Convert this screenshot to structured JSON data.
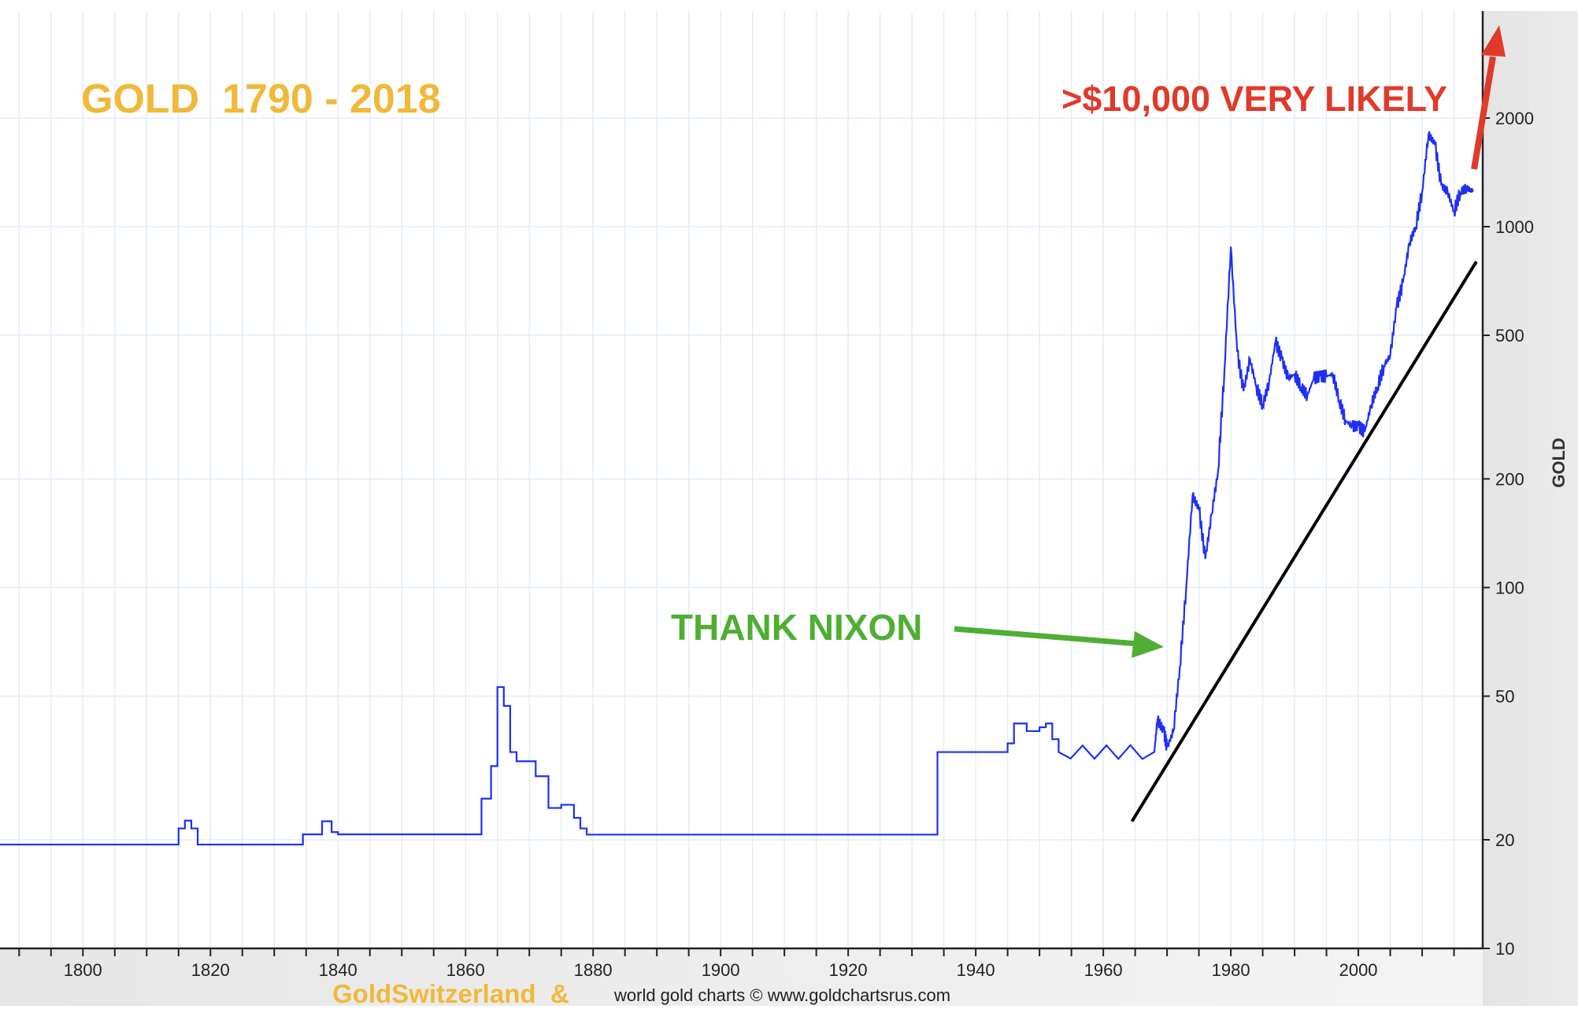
{
  "chart_data": {
    "type": "line",
    "title": "GOLD  1790 - 2018",
    "ylabel": "GOLD",
    "xlabel": "",
    "y_scale": "log",
    "ylim": [
      10,
      3000
    ],
    "xlim": [
      1787,
      2019.5
    ],
    "grid": true,
    "x_ticks": [
      1800,
      1820,
      1840,
      1860,
      1880,
      1900,
      1920,
      1940,
      1960,
      1980,
      2000
    ],
    "y_ticks": [
      10,
      20,
      50,
      100,
      200,
      500,
      1000,
      2000
    ],
    "y_tick_labels": [
      "10",
      "20",
      "50",
      "100",
      "200",
      "500",
      "1000",
      "2000"
    ],
    "series": [
      {
        "color": "#1f2ff5",
        "points": [
          [
            1787,
            19.4
          ],
          [
            1814.5,
            19.4
          ],
          [
            1815,
            21.5
          ],
          [
            1816,
            22.6
          ],
          [
            1817,
            21.5
          ],
          [
            1818,
            19.4
          ],
          [
            1834,
            19.4
          ],
          [
            1834.5,
            20.7
          ],
          [
            1837,
            20.7
          ],
          [
            1837.5,
            22.5
          ],
          [
            1839,
            21
          ],
          [
            1840,
            20.7
          ],
          [
            1862,
            20.7
          ],
          [
            1862.5,
            26
          ],
          [
            1864,
            32
          ],
          [
            1865,
            53
          ],
          [
            1866,
            47
          ],
          [
            1867,
            35
          ],
          [
            1868,
            33
          ],
          [
            1870,
            33
          ],
          [
            1871,
            30
          ],
          [
            1873,
            24.5
          ],
          [
            1875,
            25
          ],
          [
            1877,
            23
          ],
          [
            1878,
            21.5
          ],
          [
            1879,
            20.67
          ],
          [
            1933.5,
            20.67
          ],
          [
            1934,
            35
          ],
          [
            1940,
            35
          ],
          [
            1945,
            37
          ],
          [
            1946,
            42
          ],
          [
            1948,
            40
          ],
          [
            1950,
            41
          ],
          [
            1951,
            42
          ],
          [
            1952,
            38
          ],
          [
            1953,
            35
          ],
          [
            1968,
            35
          ],
          [
            1968.5,
            43
          ],
          [
            1969.5,
            40
          ],
          [
            1970,
            36
          ],
          [
            1971,
            40
          ],
          [
            1972,
            60
          ],
          [
            1973,
            100
          ],
          [
            1974,
            180
          ],
          [
            1975,
            165
          ],
          [
            1976,
            120
          ],
          [
            1977,
            160
          ],
          [
            1978,
            210
          ],
          [
            1979,
            400
          ],
          [
            1980,
            880
          ],
          [
            1981,
            450
          ],
          [
            1982,
            350
          ],
          [
            1983,
            430
          ],
          [
            1984,
            360
          ],
          [
            1985,
            320
          ],
          [
            1986,
            370
          ],
          [
            1987,
            480
          ],
          [
            1988,
            430
          ],
          [
            1989,
            380
          ],
          [
            1990,
            390
          ],
          [
            1991,
            360
          ],
          [
            1992,
            340
          ],
          [
            1993,
            380
          ],
          [
            1994,
            385
          ],
          [
            1995,
            385
          ],
          [
            1996,
            390
          ],
          [
            1997,
            330
          ],
          [
            1998,
            290
          ],
          [
            1999,
            280
          ],
          [
            2000,
            280
          ],
          [
            2001,
            270
          ],
          [
            2002,
            320
          ],
          [
            2003,
            360
          ],
          [
            2004,
            410
          ],
          [
            2005,
            440
          ],
          [
            2006,
            600
          ],
          [
            2007,
            700
          ],
          [
            2008,
            900
          ],
          [
            2009,
            1000
          ],
          [
            2010,
            1250
          ],
          [
            2011,
            1800
          ],
          [
            2012,
            1700
          ],
          [
            2013,
            1300
          ],
          [
            2014,
            1250
          ],
          [
            2015,
            1100
          ],
          [
            2016,
            1250
          ],
          [
            2017,
            1280
          ],
          [
            2018,
            1250
          ]
        ]
      }
    ],
    "trendline": {
      "color": "#000000",
      "from": [
        1964.5,
        22.5
      ],
      "to": [
        2018.5,
        800
      ]
    },
    "annotations": [
      {
        "text": ">$10,000 VERY LIKELY",
        "color": "#e03a2a"
      },
      {
        "text": "THANK NIXON",
        "color": "#4fae33"
      }
    ],
    "arrows": [
      {
        "color": "#e03a2a",
        "meaning": "up"
      },
      {
        "color": "#4fae33",
        "meaning": "points to 1971"
      }
    ]
  },
  "footer": {
    "brand": "GoldSwitzerland  &",
    "credit": "world gold charts © www.goldchartsrus.com"
  }
}
